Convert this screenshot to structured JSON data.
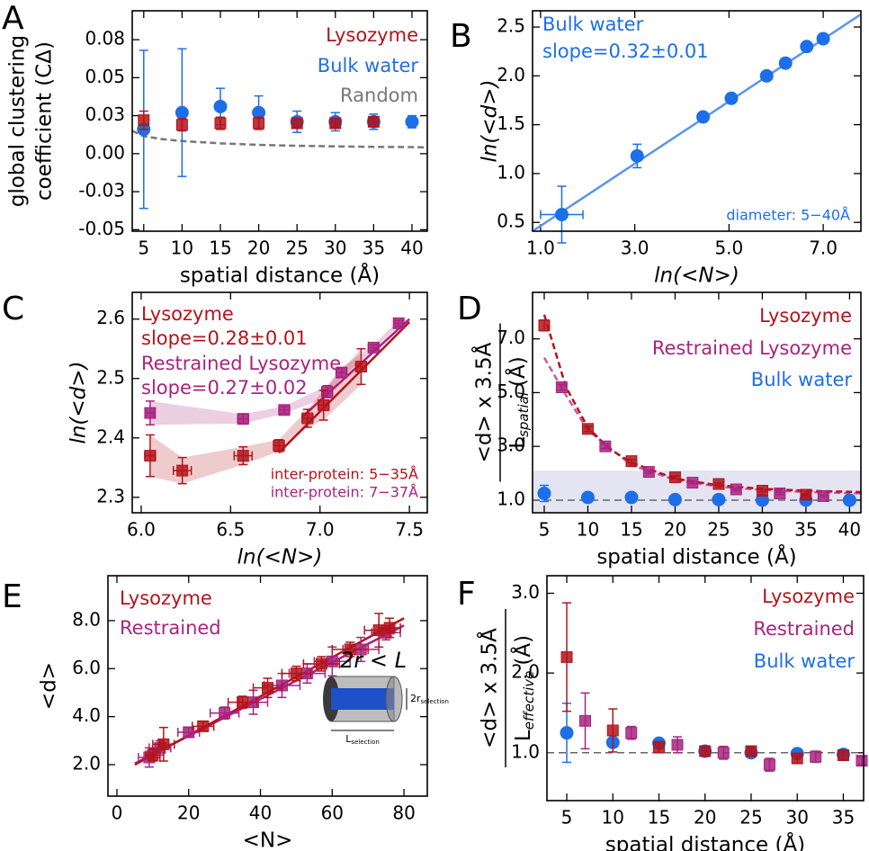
{
  "chart_data": [
    {
      "panel": "A",
      "type": "scatter",
      "xlabel": "spatial distance (Å)",
      "ylabel": [
        "global clustering",
        "coefficient (CΔ)"
      ],
      "xlim": [
        3.5,
        42
      ],
      "ylim": [
        -0.051,
        0.094
      ],
      "xticks": [
        5,
        10,
        15,
        20,
        25,
        30,
        35,
        40
      ],
      "yticks": [
        -0.05,
        {
          "value": -0.025,
          "label": "-0.03"
        },
        {
          "value": 0,
          "label": "0.00"
        },
        {
          "value": 0.025,
          "label": "0.03"
        },
        0.05,
        {
          "value": 0.075,
          "label": "0.08"
        }
      ],
      "legend": "upper right",
      "series": [
        {
          "name": "Lysozyme",
          "color": "#b3141b",
          "marker": "square",
          "x": [
            5,
            10,
            15,
            20,
            25,
            30,
            35
          ],
          "values": [
            0.022,
            0.019,
            0.02,
            0.02,
            0.02,
            0.02,
            0.021
          ],
          "errors": [
            0.006,
            0.004,
            0.004,
            0.004,
            0.003,
            0.003,
            0.003
          ]
        },
        {
          "name": "Bulk water",
          "color": "#1c6fe8",
          "marker": "circle",
          "x": [
            5,
            10,
            15,
            20,
            25,
            30,
            35,
            40
          ],
          "values": [
            0.016,
            0.027,
            0.031,
            0.027,
            0.021,
            0.021,
            0.021,
            0.021
          ],
          "errors": [
            0.052,
            0.042,
            0.012,
            0.011,
            0.007,
            0.006,
            0.005,
            0.004
          ]
        },
        {
          "name": "Random",
          "color": "#777777",
          "line": "dashed",
          "x": [
            3.5,
            5,
            7.5,
            10,
            15,
            20,
            25,
            30,
            35,
            40,
            42
          ],
          "values": [
            0.015,
            0.0115,
            0.0095,
            0.0083,
            0.0068,
            0.0058,
            0.0052,
            0.0048,
            0.0045,
            0.0043,
            0.0042
          ]
        }
      ]
    },
    {
      "panel": "B",
      "type": "scatter",
      "xlabel": "ln(<N>)",
      "ylabel": [
        "ln(<d>)"
      ],
      "xlim": [
        0.83,
        7.8
      ],
      "ylim": [
        0.41,
        2.666
      ],
      "xticks": [
        {
          "value": 1,
          "label": "1.0"
        },
        {
          "value": 3,
          "label": "3.0"
        },
        {
          "value": 5,
          "label": "5.0"
        },
        {
          "value": 7,
          "label": "7.0"
        }
      ],
      "yticks": [
        0.5,
        {
          "value": 1,
          "label": "1.0"
        },
        1.5,
        {
          "value": 2,
          "label": "2.0"
        },
        2.5
      ],
      "legend": "upper left",
      "annotations": [
        {
          "text": "slope=0.32±0.01",
          "color": "#1c6fe8"
        },
        {
          "text": "diameter: 5−40Å",
          "color": "#1c6fe8"
        }
      ],
      "series": [
        {
          "name": "Bulk water",
          "color": "#1c6fe8",
          "marker": "circle",
          "x": [
            1.45,
            3.05,
            4.45,
            5.05,
            5.8,
            6.2,
            6.65,
            7.0
          ],
          "values": [
            0.58,
            1.18,
            1.58,
            1.77,
            2.0,
            2.13,
            2.3,
            2.38
          ],
          "errors": [
            0.29,
            0.12,
            0.03,
            0.03,
            0.03,
            0.03,
            0.03,
            0.03
          ],
          "xerrors": [
            0.45,
            0.1,
            0.05,
            0.03,
            0.03,
            0.03,
            0.03,
            0.03
          ]
        },
        {
          "color": "#5b95ea",
          "line": "solid",
          "x": [
            0.83,
            7.8
          ],
          "values": [
            0.41,
            2.63
          ]
        }
      ]
    },
    {
      "panel": "C",
      "type": "scatter",
      "xlabel": "ln(<N>)",
      "ylabel": [
        "ln(<d>)"
      ],
      "xlim": [
        5.95,
        7.6
      ],
      "ylim": [
        2.274,
        2.645
      ],
      "xticks": [
        {
          "value": 6,
          "label": "6.0"
        },
        6.5,
        {
          "value": 7,
          "label": "7.0"
        },
        7.5
      ],
      "yticks": [
        2.3,
        2.4,
        2.5,
        2.6
      ],
      "legend": "upper left",
      "annotations": [
        {
          "text": "slope=0.28±0.01",
          "color": "#b3141b"
        },
        {
          "text": "slope=0.27±0.02",
          "color": "#a8237f"
        },
        {
          "text": "inter-protein: 5−35Å",
          "color": "#b3141b"
        },
        {
          "text": "inter-protein: 7−37Å",
          "color": "#a8237f"
        }
      ],
      "series": [
        {
          "name": "Lysozyme",
          "color": "#b3141b",
          "marker": "square",
          "band": true,
          "x": [
            6.05,
            6.23,
            6.57,
            6.77,
            6.93,
            7.02,
            7.23
          ],
          "values": [
            2.37,
            2.345,
            2.37,
            2.387,
            2.433,
            2.455,
            2.52
          ],
          "errors": [
            0.035,
            0.022,
            0.015,
            0.01,
            0.015,
            0.025,
            0.03
          ],
          "xerrors": [
            0.03,
            0.05,
            0.05,
            0.03,
            0.03,
            0.03,
            0.03
          ]
        },
        {
          "name": "Restrained Lysozyme",
          "color": "#a8237f",
          "marker": "square",
          "band": true,
          "x": [
            6.05,
            6.57,
            6.8,
            7.04,
            7.12,
            7.3,
            7.44
          ],
          "values": [
            2.442,
            2.432,
            2.447,
            2.478,
            2.51,
            2.552,
            2.593
          ],
          "errors": [
            0.02,
            0.008,
            0.006,
            0.01,
            0.008,
            0.005,
            0.005
          ],
          "xerrors": [
            0.02,
            0.03,
            0.03,
            0.03,
            0.03,
            0.03,
            0.02
          ]
        },
        {
          "color": "#b3141b",
          "line": "solid",
          "x": [
            6.77,
            7.5
          ],
          "values": [
            2.375,
            2.595
          ]
        },
        {
          "color": "#a8237f",
          "line": "solid",
          "x": [
            6.9,
            7.5
          ],
          "values": [
            2.435,
            2.6
          ]
        }
      ]
    },
    {
      "panel": "D",
      "type": "scatter",
      "xlabel": "spatial distance (Å)",
      "ylabel": {
        "numerator": "<d> x 3.5Å",
        "denominator": "L",
        "subscript": "spatial",
        "unit": "(Å)"
      },
      "xlim": [
        3.66,
        41.3
      ],
      "ylim": [
        0.53,
        8.73
      ],
      "xticks": [
        5,
        10,
        15,
        20,
        25,
        30,
        35,
        40
      ],
      "yticks": [
        {
          "value": 1,
          "label": "1.0"
        },
        {
          "value": 3,
          "label": "3.0"
        },
        {
          "value": 5,
          "label": "5.0"
        },
        {
          "value": 7,
          "label": "7.0"
        }
      ],
      "legend": "upper right",
      "reference_line": 1,
      "reference_band": [
        0.53,
        2.1
      ],
      "reference_band_color": "#e4e4f3",
      "series": [
        {
          "name": "Lysozyme",
          "color": "#b3141b",
          "marker": "square",
          "x": [
            5,
            10,
            15,
            20,
            25,
            30,
            35
          ],
          "values": [
            7.5,
            3.65,
            2.45,
            1.85,
            1.6,
            1.35,
            1.2
          ],
          "errors": [
            0.2,
            0.1,
            0.06,
            0.05,
            0.04,
            0.04,
            0.04
          ]
        },
        {
          "name": "Restrained Lysozyme",
          "color": "#a8237f",
          "marker": "square",
          "x": [
            7,
            12,
            17,
            22,
            27,
            32,
            37
          ],
          "values": [
            5.2,
            3.0,
            2.05,
            1.65,
            1.4,
            1.25,
            1.15
          ],
          "errors": [
            0.1,
            0.08,
            0.05,
            0.04,
            0.04,
            0.04,
            0.04
          ]
        },
        {
          "name": "Bulk water",
          "color": "#1c6fe8",
          "marker": "circle",
          "x": [
            5,
            10,
            15,
            20,
            25,
            30,
            35,
            40
          ],
          "values": [
            1.25,
            1.1,
            1.1,
            1.02,
            1.02,
            1.0,
            1.0,
            1.0
          ],
          "errors": [
            0.3,
            0.05,
            0.04,
            0.03,
            0.03,
            0.03,
            0.03,
            0.03
          ]
        },
        {
          "color": "#b3141b",
          "line": "dashed",
          "x": [
            5,
            7.5,
            10,
            12.5,
            15,
            20,
            25,
            30,
            35,
            41.3
          ],
          "values": [
            7.9,
            5.2,
            3.7,
            2.9,
            2.4,
            1.8,
            1.55,
            1.42,
            1.35,
            1.3
          ]
        },
        {
          "color": "#c55aa5",
          "line": "dashed",
          "x": [
            5,
            7.5,
            10,
            15,
            20,
            25,
            30,
            35,
            41.3
          ],
          "values": [
            6.3,
            4.9,
            3.6,
            2.3,
            1.75,
            1.5,
            1.38,
            1.3,
            1.25
          ]
        }
      ]
    },
    {
      "panel": "E",
      "type": "scatter",
      "xlabel": "<N>",
      "ylabel": [
        "<d>"
      ],
      "xlim": [
        -2.5,
        86.5
      ],
      "ylim": [
        0.69,
        9.87
      ],
      "xticks": [
        0,
        20,
        40,
        60,
        80
      ],
      "yticks": [
        {
          "value": 2,
          "label": "2.0"
        },
        {
          "value": 4,
          "label": "4.0"
        },
        {
          "value": 6,
          "label": "6.0"
        },
        {
          "value": 8,
          "label": "8.0"
        }
      ],
      "legend": "upper left",
      "inset": {
        "title": "2r < L",
        "diameter": "2r",
        "diameter_sub": "selection",
        "length": "L",
        "length_sub": "selection"
      },
      "series": [
        {
          "name": "Lysozyme",
          "color": "#b3141b",
          "marker": "square",
          "x": [
            10,
            13,
            24,
            35,
            42,
            50,
            57,
            65,
            73,
            76
          ],
          "values": [
            2.4,
            2.85,
            3.6,
            4.6,
            5.2,
            5.8,
            6.2,
            6.8,
            7.6,
            7.7
          ],
          "errors": [
            0.25,
            0.7,
            0.2,
            0.25,
            0.4,
            0.3,
            0.3,
            0.3,
            0.7,
            0.4
          ],
          "xerrors": [
            2,
            3,
            3,
            4,
            4,
            4,
            5,
            5,
            4,
            3
          ]
        },
        {
          "name": "Restrained",
          "color": "#a8237f",
          "marker": "square",
          "x": [
            9,
            12,
            20,
            30,
            38,
            46,
            53,
            60,
            68,
            75
          ],
          "values": [
            2.3,
            2.7,
            3.35,
            4.15,
            4.6,
            5.3,
            5.8,
            6.3,
            6.8,
            7.5
          ],
          "errors": [
            0.4,
            0.3,
            0.2,
            0.25,
            0.5,
            0.5,
            0.4,
            0.6,
            0.5,
            0.3
          ],
          "xerrors": [
            3,
            3,
            3,
            4,
            4,
            5,
            5,
            5,
            5,
            4
          ]
        },
        {
          "color": "#b3141b",
          "line": "solid",
          "x": [
            5,
            80
          ],
          "values": [
            2.0,
            8.1
          ]
        },
        {
          "color": "#a8237f",
          "line": "solid",
          "x": [
            5,
            80
          ],
          "values": [
            2.05,
            7.8
          ]
        }
      ]
    },
    {
      "panel": "F",
      "type": "scatter",
      "xlabel": "spatial distance (Å)",
      "ylabel": {
        "numerator": "<d> x 3.5Å",
        "denominator": "L",
        "subscript": "effective",
        "unit": "(Å)"
      },
      "xlim": [
        2.85,
        37.2
      ],
      "ylim": [
        0.4,
        3.22
      ],
      "xticks": [
        5,
        10,
        15,
        20,
        25,
        30,
        35
      ],
      "yticks": [
        {
          "value": 1,
          "label": "1.0"
        },
        {
          "value": 2,
          "label": "2.0"
        },
        {
          "value": 3,
          "label": "3.0"
        }
      ],
      "legend": "upper right",
      "reference_line": 1,
      "series": [
        {
          "name": "Lysozyme",
          "color": "#b3141b",
          "marker": "square",
          "x": [
            5,
            10,
            15,
            20,
            25,
            30,
            35
          ],
          "values": [
            2.2,
            1.28,
            1.07,
            1.02,
            1.02,
            0.93,
            0.97
          ],
          "errors": [
            0.68,
            0.27,
            0.07,
            0.06,
            0.05,
            0.06,
            0.06
          ]
        },
        {
          "name": "Restrained",
          "color": "#a8237f",
          "marker": "square",
          "x": [
            7,
            12,
            17,
            22,
            27,
            32,
            37
          ],
          "values": [
            1.4,
            1.25,
            1.1,
            1.0,
            0.85,
            0.95,
            0.9
          ],
          "errors": [
            0.35,
            0.08,
            0.1,
            0.08,
            0.08,
            0.07,
            0.05
          ]
        },
        {
          "name": "Bulk water",
          "color": "#1c6fe8",
          "marker": "circle",
          "x": [
            5,
            10,
            15,
            20,
            25,
            30,
            35
          ],
          "values": [
            1.25,
            1.13,
            1.12,
            1.02,
            1.0,
            0.99,
            0.98
          ],
          "errors": [
            0.37,
            0.05,
            0.03,
            0.03,
            0.03,
            0.03,
            0.03
          ]
        }
      ]
    }
  ]
}
